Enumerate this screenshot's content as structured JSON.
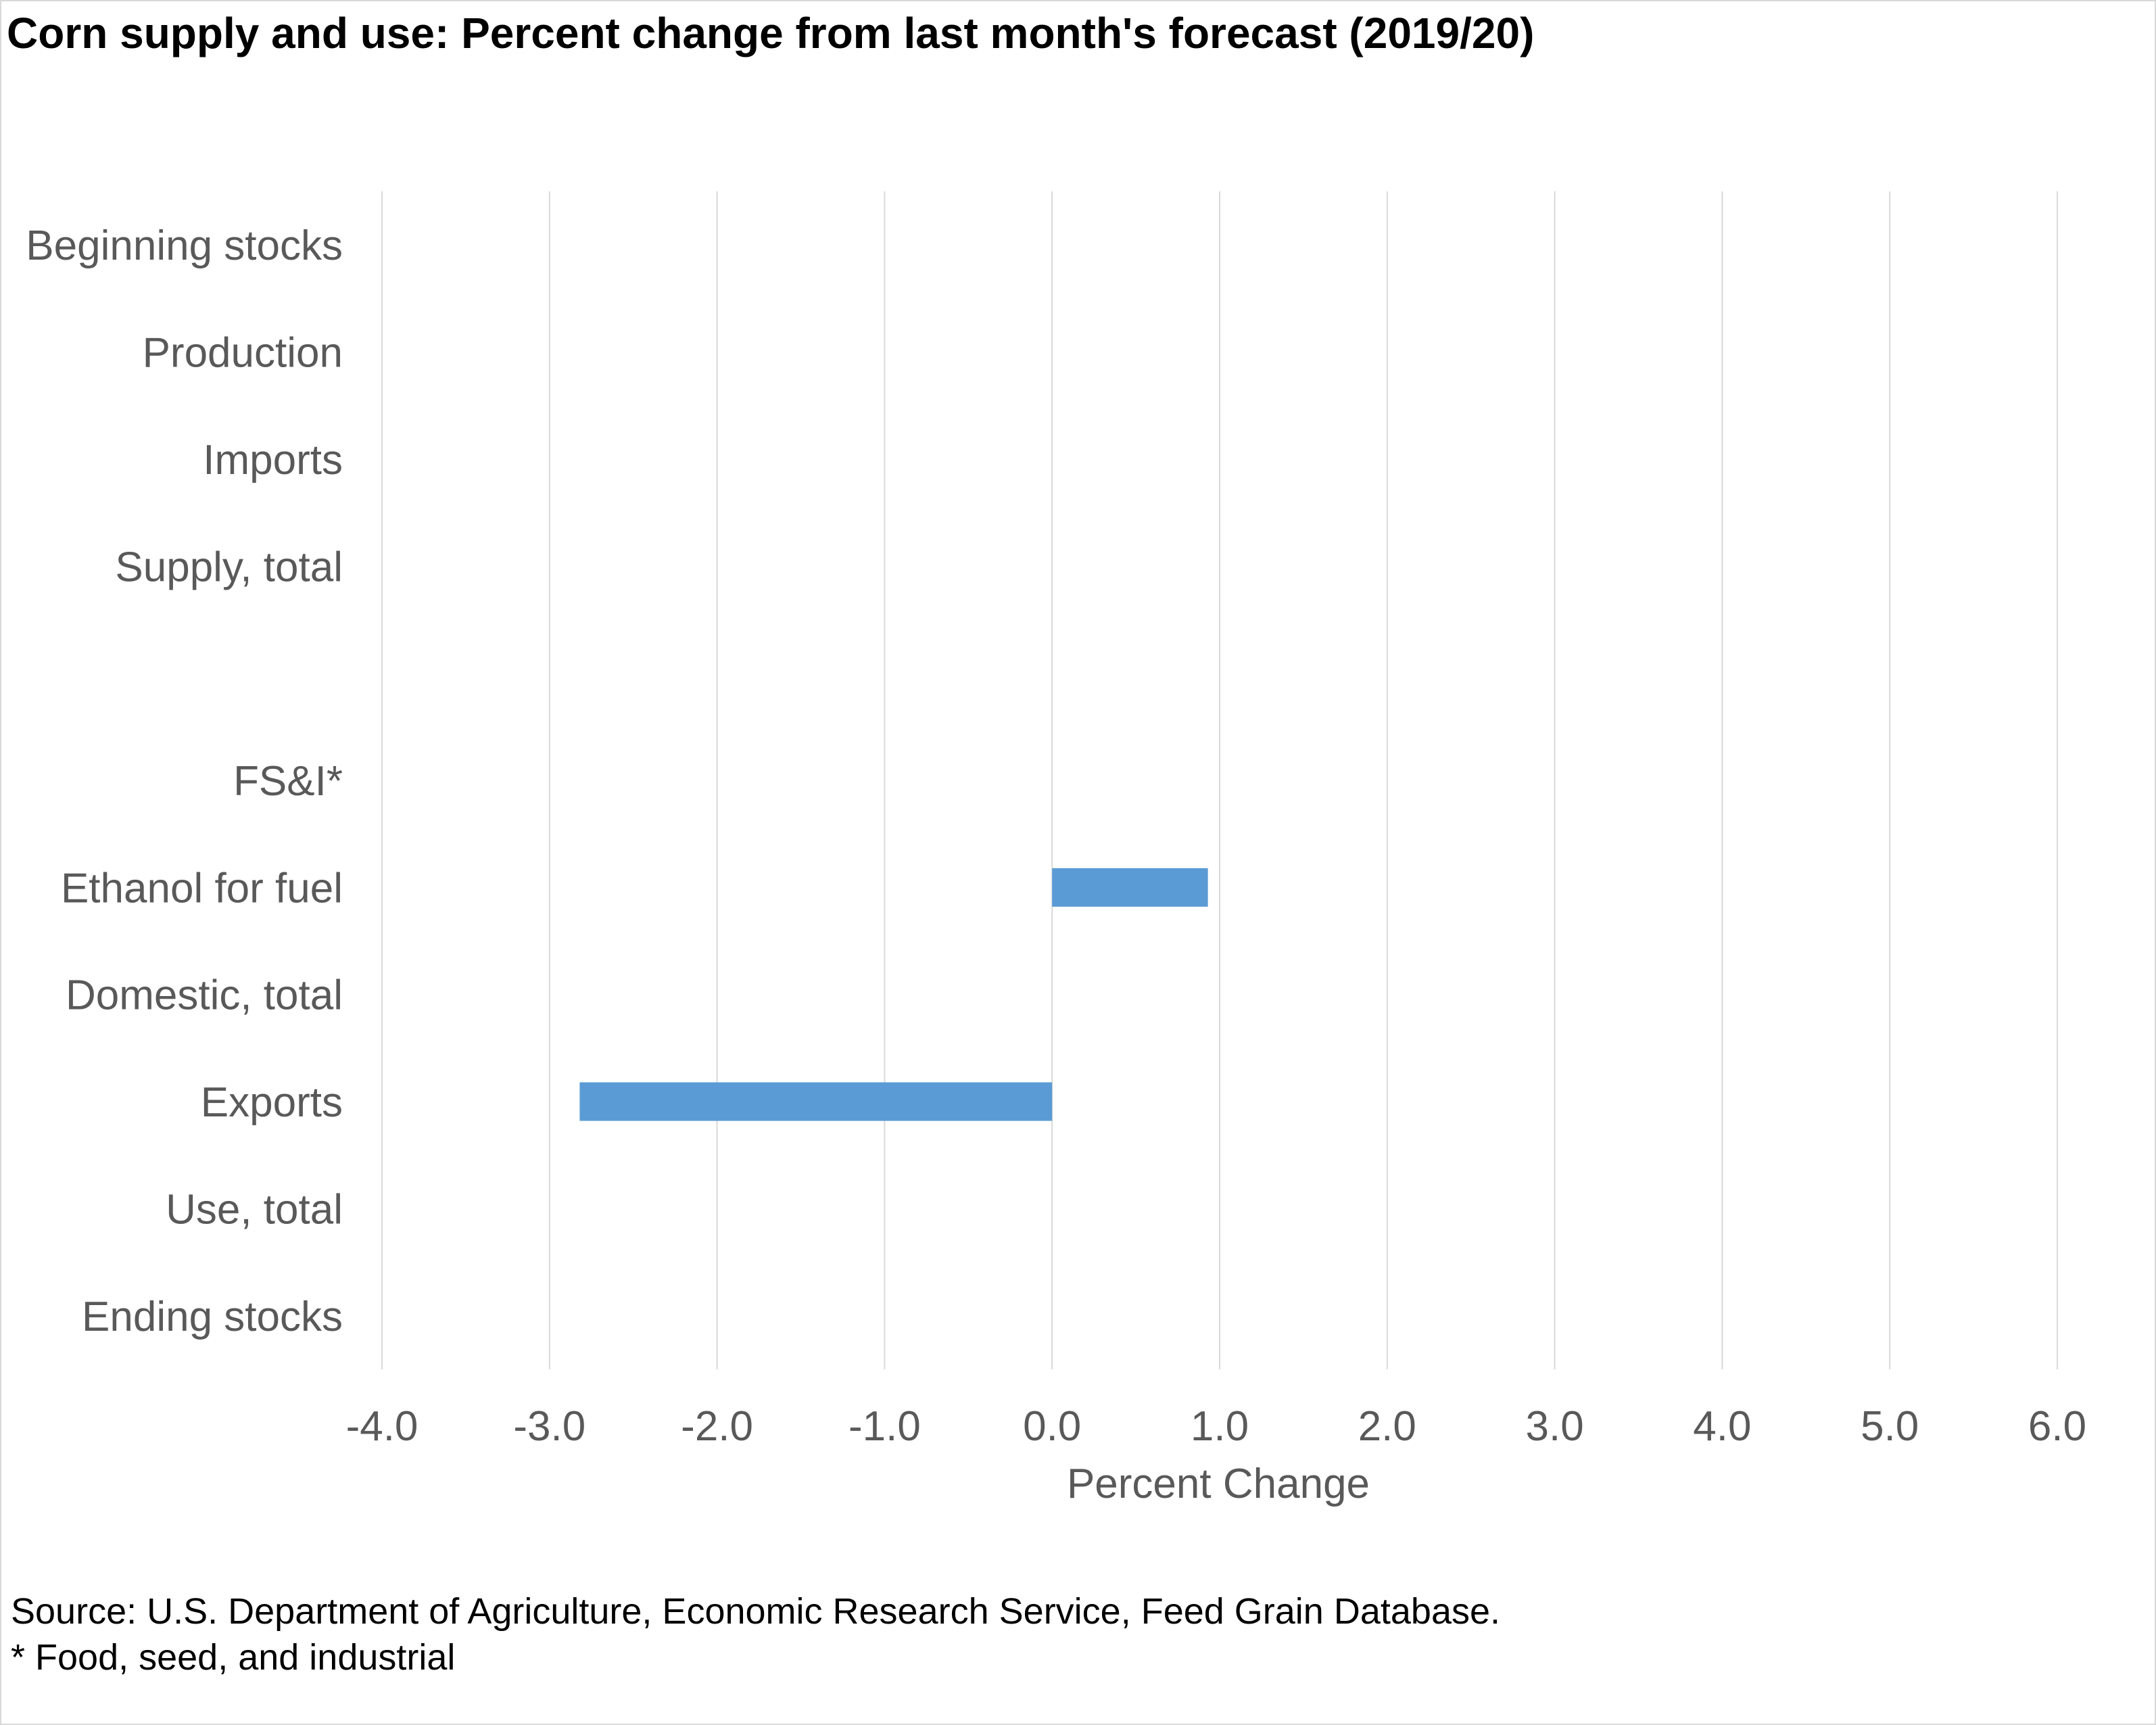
{
  "chart_data": {
    "type": "bar",
    "orientation": "horizontal",
    "title": "Corn supply and use: Percent change from last month's forecast (2019/20)",
    "categories": [
      "Beginning stocks",
      "Production",
      "Imports",
      "Supply, total",
      "",
      "FS&I*",
      "Ethanol for fuel",
      "Domestic, total",
      "Exports",
      "Use, total",
      "Ending stocks"
    ],
    "values": [
      0,
      0,
      0,
      0,
      null,
      0,
      0.93,
      0,
      -2.82,
      0,
      0
    ],
    "xlabel": "Percent Change",
    "ylabel": "",
    "xlim": [
      -4,
      6
    ],
    "xticks": [
      -4,
      -3,
      -2,
      -1,
      0,
      1,
      2,
      3,
      4,
      5,
      6
    ],
    "tick_labels": [
      "-4.0",
      "-3.0",
      "-2.0",
      "-1.0",
      "0.0",
      "1.0",
      "2.0",
      "3.0",
      "4.0",
      "5.0",
      "6.0"
    ],
    "grid": true,
    "bar_color": "#5b9bd5",
    "grid_color": "#d9d9d9",
    "label_color": "#595959"
  },
  "notes": {
    "source": "Source: U.S. Department of Agriculture, Economic Research Service, Feed Grain Database.",
    "footnote": "* Food, seed, and industrial"
  }
}
